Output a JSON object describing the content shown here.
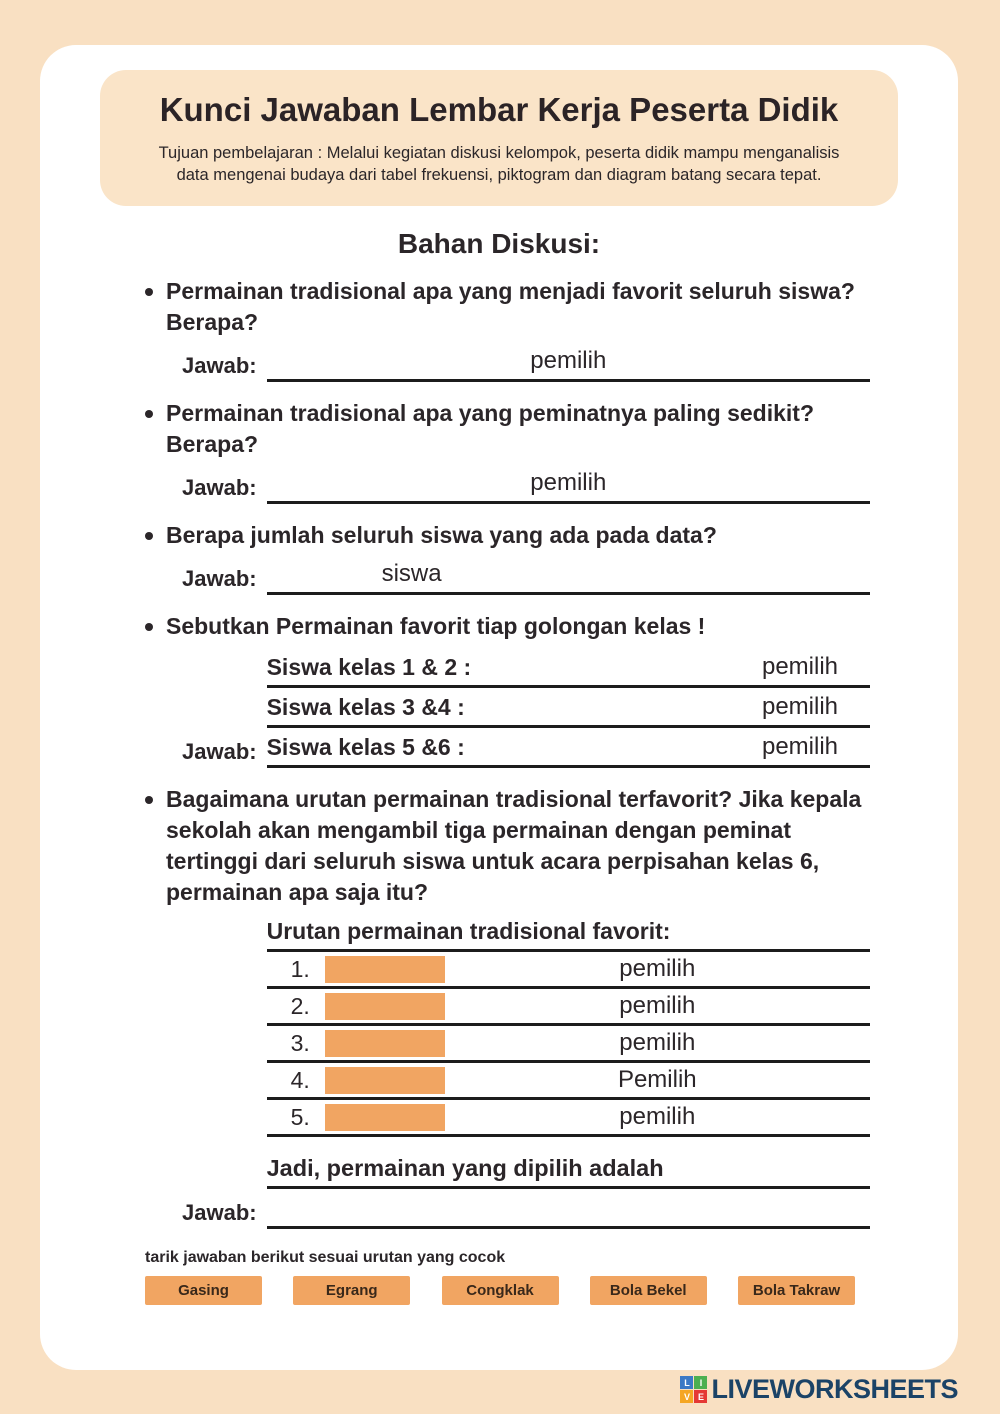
{
  "colors": {
    "page_bg": "#F9E0C2",
    "header_bg": "#FAE4C8",
    "card_bg": "#FFFFFF",
    "accent_orange": "#F1A562",
    "line_black": "#1C1C1C",
    "text_dark": "#2B2629",
    "logo_navy": "#1B4367"
  },
  "header": {
    "title": "Kunci Jawaban Lembar Kerja Peserta Didik",
    "objective": "Tujuan pembelajaran : Melalui kegiatan diskusi kelompok, peserta didik mampu menganalisis data mengenai budaya dari tabel frekuensi,  piktogram dan diagram batang secara tepat."
  },
  "section_title": "Bahan Diskusi:",
  "jawab_label": "Jawab:",
  "questions": [
    {
      "text": "Permainan tradisional apa yang menjadi favorit seluruh siswa? Berapa?",
      "answer": "pemilih"
    },
    {
      "text": "Permainan tradisional apa yang peminatnya paling sedikit? Berapa?",
      "answer": "pemilih"
    },
    {
      "text": "Berapa jumlah seluruh siswa yang ada pada data?",
      "answer": "siswa"
    },
    {
      "text": "Sebutkan Permainan favorit tiap golongan kelas !"
    },
    {
      "text": "Bagaimana urutan permainan tradisional terfavorit? Jika kepala sekolah akan mengambil tiga permainan dengan peminat tertinggi dari seluruh siswa untuk acara perpisahan kelas 6, permainan apa saja itu?"
    }
  ],
  "class_rows": [
    {
      "label": "Siswa kelas 1 & 2 :",
      "answer": "pemilih"
    },
    {
      "label": "Siswa kelas 3 &4 :",
      "answer": "pemilih"
    },
    {
      "label": "Siswa kelas 5 &6 :",
      "answer": "pemilih"
    }
  ],
  "ranking": {
    "heading": "Urutan permainan tradisional favorit:",
    "rows": [
      {
        "num": "1.",
        "answer": "pemilih"
      },
      {
        "num": "2.",
        "answer": "pemilih"
      },
      {
        "num": "3.",
        "answer": "pemilih"
      },
      {
        "num": "4.",
        "answer": "Pemilih"
      },
      {
        "num": "5.",
        "answer": "pemilih"
      }
    ],
    "conclusion": "Jadi, permainan yang dipilih adalah"
  },
  "drag": {
    "instruction": "tarik jawaban berikut sesuai urutan yang cocok",
    "options": [
      "Gasing",
      "Egrang",
      "Congklak",
      "Bola Bekel",
      "Bola Takraw"
    ]
  },
  "footer": {
    "brand": "LIVEWORKSHEETS",
    "logo_letters": [
      "L",
      "I",
      "V",
      "E"
    ]
  }
}
